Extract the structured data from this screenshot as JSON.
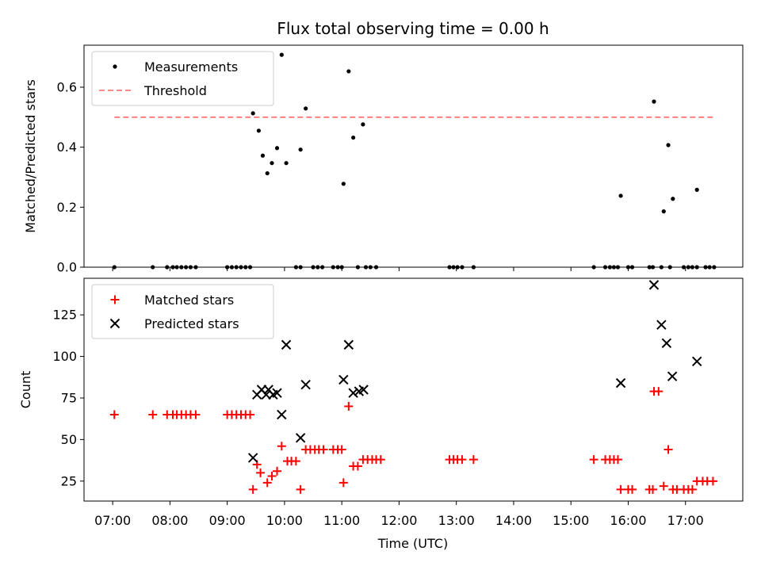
{
  "chart_data": {
    "title": "Flux total observing time = 0.00 h",
    "x_axis": {
      "label": "Time (UTC)",
      "range_hours": [
        6.5,
        18.0
      ],
      "ticks": [
        {
          "value": 7,
          "label": "07:00"
        },
        {
          "value": 8,
          "label": "08:00"
        },
        {
          "value": 9,
          "label": "09:00"
        },
        {
          "value": 10,
          "label": "10:00"
        },
        {
          "value": 11,
          "label": "11:00"
        },
        {
          "value": 12,
          "label": "12:00"
        },
        {
          "value": 13,
          "label": "13:00"
        },
        {
          "value": 14,
          "label": "14:00"
        },
        {
          "value": 15,
          "label": "15:00"
        },
        {
          "value": 16,
          "label": "16:00"
        },
        {
          "value": 17,
          "label": "17:00"
        }
      ]
    },
    "panels": [
      {
        "type": "scatter",
        "ylabel": "Matched/Predicted stars",
        "ylim": [
          0,
          0.74
        ],
        "yticks": [
          {
            "value": 0,
            "label": "0.0"
          },
          {
            "value": 0.2,
            "label": "0.2"
          },
          {
            "value": 0.4,
            "label": "0.4"
          },
          {
            "value": 0.6,
            "label": "0.6"
          }
        ],
        "legend_position": "top-left",
        "series": [
          {
            "name": "Measurements",
            "marker": "dot",
            "color": "#000000",
            "points": [
              [
                7.03,
                0
              ],
              [
                7.7,
                0
              ],
              [
                7.95,
                0
              ],
              [
                8.05,
                0
              ],
              [
                8.12,
                0
              ],
              [
                8.2,
                0
              ],
              [
                8.28,
                0
              ],
              [
                8.36,
                0
              ],
              [
                8.45,
                0
              ],
              [
                9.0,
                0
              ],
              [
                9.08,
                0
              ],
              [
                9.16,
                0
              ],
              [
                9.24,
                0
              ],
              [
                9.32,
                0
              ],
              [
                9.4,
                0
              ],
              [
                10.2,
                0
              ],
              [
                10.28,
                0
              ],
              [
                10.5,
                0
              ],
              [
                10.58,
                0
              ],
              [
                10.66,
                0
              ],
              [
                10.85,
                0
              ],
              [
                10.93,
                0
              ],
              [
                11.0,
                0
              ],
              [
                11.28,
                0
              ],
              [
                11.42,
                0
              ],
              [
                11.5,
                0
              ],
              [
                11.6,
                0
              ],
              [
                12.88,
                0
              ],
              [
                12.95,
                0
              ],
              [
                13.02,
                0
              ],
              [
                13.1,
                0
              ],
              [
                13.3,
                0
              ],
              [
                15.4,
                0
              ],
              [
                15.6,
                0
              ],
              [
                15.68,
                0
              ],
              [
                15.75,
                0
              ],
              [
                15.82,
                0
              ],
              [
                16.0,
                0
              ],
              [
                16.07,
                0
              ],
              [
                16.37,
                0
              ],
              [
                16.43,
                0
              ],
              [
                16.58,
                0
              ],
              [
                16.73,
                0
              ],
              [
                16.97,
                0
              ],
              [
                17.05,
                0
              ],
              [
                17.12,
                0
              ],
              [
                17.2,
                0
              ],
              [
                17.35,
                0
              ],
              [
                17.42,
                0
              ],
              [
                17.5,
                0
              ],
              [
                9.45,
                0.513
              ],
              [
                9.55,
                0.455
              ],
              [
                9.62,
                0.372
              ],
              [
                9.7,
                0.313
              ],
              [
                9.78,
                0.347
              ],
              [
                9.87,
                0.397
              ],
              [
                9.95,
                0.708
              ],
              [
                10.03,
                0.347
              ],
              [
                10.28,
                0.392
              ],
              [
                10.37,
                0.529
              ],
              [
                11.03,
                0.278
              ],
              [
                11.12,
                0.653
              ],
              [
                11.2,
                0.432
              ],
              [
                11.37,
                0.476
              ],
              [
                15.87,
                0.238
              ],
              [
                16.45,
                0.552
              ],
              [
                16.62,
                0.186
              ],
              [
                16.7,
                0.407
              ],
              [
                16.78,
                0.228
              ],
              [
                17.2,
                0.258
              ]
            ]
          },
          {
            "name": "Threshold",
            "marker": "dashed-line",
            "color": "#ff7777",
            "points": [
              [
                7.03,
                0.5
              ],
              [
                17.5,
                0.5
              ]
            ]
          }
        ]
      },
      {
        "type": "scatter",
        "ylabel": "Count",
        "ylim": [
          13,
          147
        ],
        "yticks": [
          {
            "value": 25,
            "label": "25"
          },
          {
            "value": 50,
            "label": "50"
          },
          {
            "value": 75,
            "label": "75"
          },
          {
            "value": 100,
            "label": "100"
          },
          {
            "value": 125,
            "label": "125"
          }
        ],
        "legend_position": "top-left",
        "series": [
          {
            "name": "Matched stars",
            "marker": "plus",
            "color": "#ff0000",
            "points": [
              [
                7.03,
                65
              ],
              [
                7.7,
                65
              ],
              [
                7.95,
                65
              ],
              [
                8.05,
                65
              ],
              [
                8.12,
                65
              ],
              [
                8.2,
                65
              ],
              [
                8.28,
                65
              ],
              [
                8.36,
                65
              ],
              [
                8.45,
                65
              ],
              [
                9.0,
                65
              ],
              [
                9.08,
                65
              ],
              [
                9.16,
                65
              ],
              [
                9.24,
                65
              ],
              [
                9.32,
                65
              ],
              [
                9.4,
                65
              ],
              [
                9.45,
                20
              ],
              [
                9.52,
                35
              ],
              [
                9.58,
                30
              ],
              [
                9.7,
                24
              ],
              [
                9.78,
                28
              ],
              [
                9.87,
                31
              ],
              [
                9.95,
                46
              ],
              [
                10.05,
                37
              ],
              [
                10.12,
                37
              ],
              [
                10.2,
                37
              ],
              [
                10.28,
                20
              ],
              [
                10.37,
                44
              ],
              [
                10.45,
                44
              ],
              [
                10.53,
                44
              ],
              [
                10.6,
                44
              ],
              [
                10.68,
                44
              ],
              [
                10.85,
                44
              ],
              [
                10.93,
                44
              ],
              [
                11.0,
                44
              ],
              [
                11.03,
                24
              ],
              [
                11.12,
                70
              ],
              [
                11.2,
                34
              ],
              [
                11.28,
                34
              ],
              [
                11.37,
                38
              ],
              [
                11.45,
                38
              ],
              [
                11.53,
                38
              ],
              [
                11.6,
                38
              ],
              [
                11.68,
                38
              ],
              [
                12.88,
                38
              ],
              [
                12.95,
                38
              ],
              [
                13.02,
                38
              ],
              [
                13.1,
                38
              ],
              [
                13.3,
                38
              ],
              [
                15.4,
                38
              ],
              [
                15.6,
                38
              ],
              [
                15.68,
                38
              ],
              [
                15.75,
                38
              ],
              [
                15.82,
                38
              ],
              [
                15.87,
                20
              ],
              [
                16.0,
                20
              ],
              [
                16.07,
                20
              ],
              [
                16.37,
                20
              ],
              [
                16.43,
                20
              ],
              [
                16.45,
                79
              ],
              [
                16.53,
                79
              ],
              [
                16.62,
                22
              ],
              [
                16.7,
                44
              ],
              [
                16.78,
                20
              ],
              [
                16.85,
                20
              ],
              [
                16.97,
                20
              ],
              [
                17.05,
                20
              ],
              [
                17.12,
                20
              ],
              [
                17.2,
                25
              ],
              [
                17.3,
                25
              ],
              [
                17.38,
                25
              ],
              [
                17.48,
                25
              ]
            ]
          },
          {
            "name": "Predicted stars",
            "marker": "x",
            "color": "#000000",
            "points": [
              [
                9.45,
                39
              ],
              [
                9.52,
                77
              ],
              [
                9.6,
                80
              ],
              [
                9.68,
                77
              ],
              [
                9.72,
                80
              ],
              [
                9.8,
                77
              ],
              [
                9.87,
                78
              ],
              [
                9.95,
                65
              ],
              [
                10.03,
                107
              ],
              [
                10.28,
                51
              ],
              [
                10.37,
                83
              ],
              [
                11.03,
                86
              ],
              [
                11.12,
                107
              ],
              [
                11.2,
                78
              ],
              [
                11.3,
                79
              ],
              [
                11.38,
                80
              ],
              [
                15.87,
                84
              ],
              [
                16.45,
                143
              ],
              [
                16.58,
                119
              ],
              [
                16.67,
                108
              ],
              [
                16.77,
                88
              ],
              [
                17.2,
                97
              ]
            ]
          }
        ]
      }
    ]
  }
}
